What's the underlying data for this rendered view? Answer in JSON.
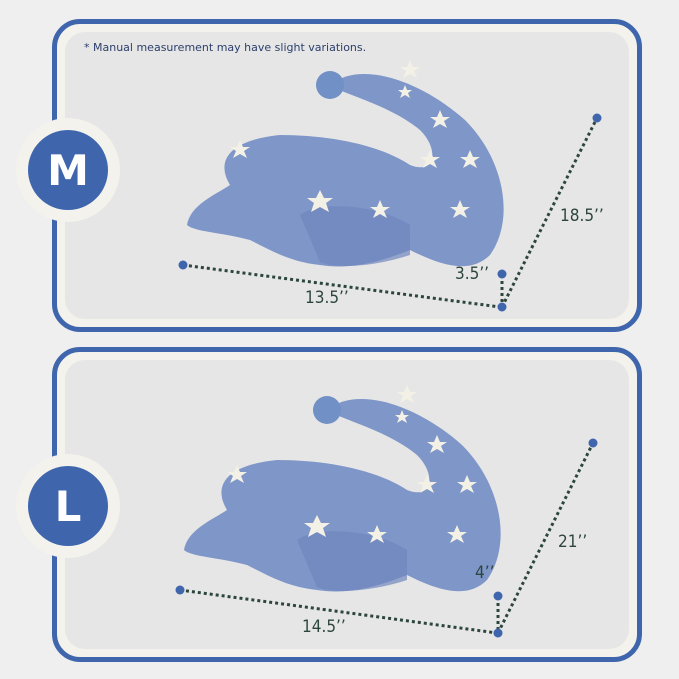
{
  "note": "* Manual measurement may have slight variations.",
  "colors": {
    "frame": "#3f66ad",
    "pillow": "#7f96c9",
    "dotted_line": "#2d463c",
    "endpoint": "#3f66ad"
  },
  "sizes": [
    {
      "label": "M",
      "width": "13.5’’",
      "height": "3.5’’",
      "length": "18.5’’"
    },
    {
      "label": "L",
      "width": "14.5’’",
      "height": "4’’",
      "length": "21’’"
    }
  ]
}
